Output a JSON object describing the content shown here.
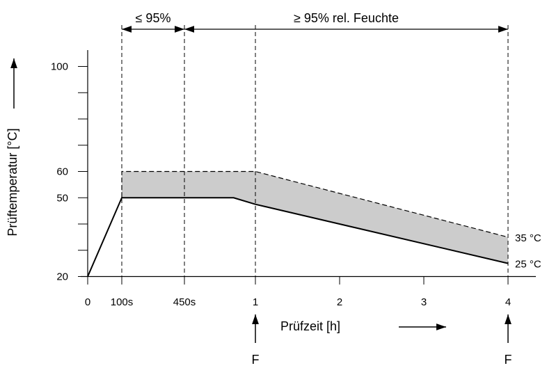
{
  "chart_data": {
    "type": "area",
    "title": "",
    "xlabel": "Prüfzeit [h]",
    "ylabel": "Prüftemperatur [°C]",
    "ylim": [
      20,
      110
    ],
    "xlim": [
      0,
      4
    ],
    "x_ticks": [
      {
        "label": "0",
        "value": 0
      },
      {
        "label": "100s",
        "value": 0.1
      },
      {
        "label": "450s",
        "value": 0.35
      },
      {
        "label": "1",
        "value": 1
      },
      {
        "label": "2",
        "value": 2
      },
      {
        "label": "3",
        "value": 3
      },
      {
        "label": "4",
        "value": 4
      }
    ],
    "y_ticks_labeled": [
      {
        "label": "20",
        "value": 20
      },
      {
        "label": "50",
        "value": 50
      },
      {
        "label": "60",
        "value": 60
      },
      {
        "label": "100",
        "value": 100
      }
    ],
    "y_ticks_minor": [
      30,
      40,
      70,
      80,
      90
    ],
    "series": [
      {
        "name": "",
        "style": "solid",
        "points": [
          [
            0,
            20
          ],
          [
            0.1,
            50
          ],
          [
            0.35,
            50
          ],
          [
            0.8,
            50
          ],
          [
            1,
            47.5
          ],
          [
            4,
            25
          ]
        ]
      },
      {
        "name": "",
        "style": "dashed",
        "points": [
          [
            0.1,
            60
          ],
          [
            0.35,
            60
          ],
          [
            1,
            60
          ],
          [
            4,
            35
          ]
        ]
      }
    ],
    "band_fill": "#cccccc",
    "end_labels": [
      {
        "text": "35 °C",
        "y": 35
      },
      {
        "text": "25 °C",
        "y": 25
      }
    ],
    "vlines": [
      0.1,
      0.35,
      1,
      4
    ],
    "spans": [
      {
        "text": "≤ 95%",
        "from": 0.1,
        "to": 0.35
      },
      {
        "text": "≥ 95% rel. Feuchte",
        "from": 0.35,
        "to": 4
      }
    ],
    "markers": [
      {
        "label": "F",
        "x": 1
      },
      {
        "label": "F",
        "x": 4
      }
    ]
  }
}
